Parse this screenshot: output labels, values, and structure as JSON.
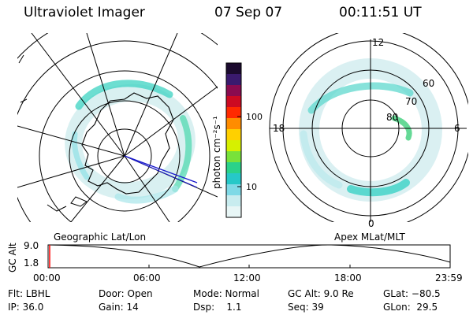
{
  "header": {
    "instrument": "Ultraviolet Imager",
    "date": "07 Sep 07",
    "time": "00:11:51 UT"
  },
  "colorbar": {
    "unit_label": "photon cm⁻²s⁻¹",
    "ticks": [
      "100",
      "10"
    ],
    "colors": [
      "#1b0a2e",
      "#3a1a6e",
      "#8a0b4f",
      "#cc0a22",
      "#ff2a00",
      "#ff8c00",
      "#ffd000",
      "#d6f000",
      "#78e23a",
      "#2ad28a",
      "#26c8c8",
      "#7fd9e6",
      "#c8ecef",
      "#e8f6f6"
    ]
  },
  "geo_map": {
    "caption": "Geographic Lat/Lon"
  },
  "mag_map": {
    "caption": "Apex MLat/MLT",
    "mlt_labels": {
      "top": "12",
      "left": "18",
      "right": "6",
      "bottom": "0"
    },
    "lat_labels": [
      "60",
      "70",
      "80"
    ]
  },
  "altitude_plot": {
    "ylabel": "GC Alt",
    "yticks": [
      "9.0",
      "1.8"
    ],
    "xticks": [
      "00:00",
      "06:00",
      "12:00",
      "18:00",
      "23:59"
    ],
    "marker_color": "#ff0000"
  },
  "footer": {
    "row1": {
      "flt": "Flt: LBHL",
      "door": "Door: Open",
      "mode": "Mode: Normal",
      "gcalt": "GC Alt: 9.0 Re",
      "glat": "GLat: −80.5"
    },
    "row2": {
      "ip": "IP: 36.0",
      "gain": "Gain: 14",
      "dsp": "Dsp:    1.1",
      "seq": "Seq: 39",
      "glon": "GLon:  29.5"
    }
  }
}
